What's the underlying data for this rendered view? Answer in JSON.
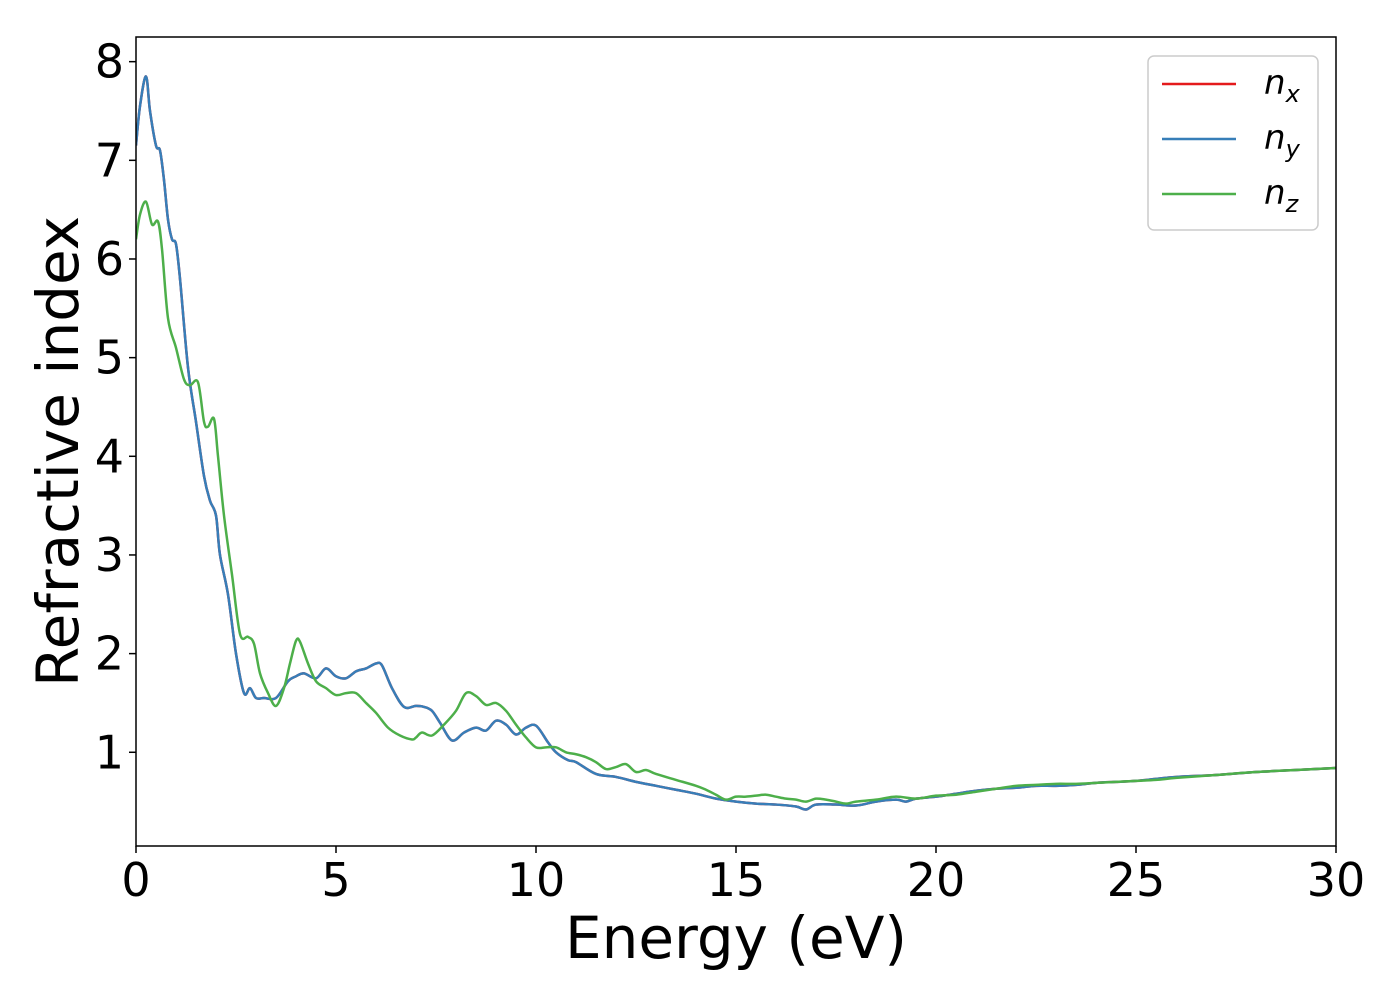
{
  "chart_data": {
    "type": "line",
    "title": "",
    "xlabel": "Energy (eV)",
    "ylabel": "Refractive index",
    "xlim": [
      0,
      30
    ],
    "ylim": [
      0.05,
      8.25
    ],
    "xticks": [
      0,
      5,
      10,
      15,
      20,
      25,
      30
    ],
    "yticks": [
      1,
      2,
      3,
      4,
      5,
      6,
      7,
      8
    ],
    "grid": false,
    "legend_position": "top-right",
    "series": [
      {
        "name": "n_x",
        "label_main": "n",
        "label_sub": "x",
        "color": "#e41a1c",
        "x": [
          0,
          0.1,
          0.25,
          0.35,
          0.5,
          0.6,
          0.7,
          0.8,
          0.9,
          1.0,
          1.1,
          1.3,
          1.5,
          1.7,
          1.85,
          2.0,
          2.1,
          2.3,
          2.5,
          2.7,
          2.85,
          3.0,
          3.2,
          3.5,
          3.8,
          4.0,
          4.2,
          4.5,
          4.75,
          5.0,
          5.25,
          5.5,
          5.75,
          6.0,
          6.15,
          6.4,
          6.7,
          7.0,
          7.2,
          7.4,
          7.6,
          7.9,
          8.2,
          8.5,
          8.75,
          9.0,
          9.25,
          9.5,
          9.75,
          10.0,
          10.3,
          10.5,
          10.8,
          11.0,
          11.5,
          12.0,
          12.5,
          13.0,
          13.5,
          14.0,
          14.5,
          15.0,
          15.5,
          16.0,
          16.5,
          16.75,
          17.0,
          17.5,
          18.0,
          18.5,
          19.0,
          19.25,
          19.5,
          20.0,
          20.5,
          21.0,
          21.5,
          22.0,
          22.5,
          23.0,
          23.5,
          24.0,
          24.5,
          25.0,
          25.5,
          26.0,
          27.0,
          28.0,
          29.0,
          30.0
        ],
        "y": [
          7.15,
          7.55,
          7.85,
          7.5,
          7.15,
          7.1,
          6.8,
          6.4,
          6.2,
          6.15,
          5.8,
          4.9,
          4.35,
          3.8,
          3.55,
          3.4,
          3.0,
          2.6,
          2.0,
          1.6,
          1.65,
          1.55,
          1.55,
          1.55,
          1.72,
          1.77,
          1.8,
          1.75,
          1.85,
          1.77,
          1.75,
          1.82,
          1.85,
          1.9,
          1.88,
          1.65,
          1.46,
          1.47,
          1.46,
          1.42,
          1.3,
          1.12,
          1.2,
          1.25,
          1.22,
          1.32,
          1.28,
          1.18,
          1.25,
          1.27,
          1.1,
          1.0,
          0.92,
          0.9,
          0.78,
          0.75,
          0.7,
          0.66,
          0.62,
          0.58,
          0.53,
          0.5,
          0.48,
          0.47,
          0.45,
          0.42,
          0.47,
          0.47,
          0.46,
          0.5,
          0.52,
          0.5,
          0.53,
          0.55,
          0.58,
          0.61,
          0.63,
          0.64,
          0.66,
          0.66,
          0.67,
          0.69,
          0.7,
          0.71,
          0.73,
          0.75,
          0.77,
          0.8,
          0.82,
          0.84
        ]
      },
      {
        "name": "n_y",
        "label_main": "n",
        "label_sub": "y",
        "color": "#377eb8",
        "x": [
          0,
          0.1,
          0.25,
          0.35,
          0.5,
          0.6,
          0.7,
          0.8,
          0.9,
          1.0,
          1.1,
          1.3,
          1.5,
          1.7,
          1.85,
          2.0,
          2.1,
          2.3,
          2.5,
          2.7,
          2.85,
          3.0,
          3.2,
          3.5,
          3.8,
          4.0,
          4.2,
          4.5,
          4.75,
          5.0,
          5.25,
          5.5,
          5.75,
          6.0,
          6.15,
          6.4,
          6.7,
          7.0,
          7.2,
          7.4,
          7.6,
          7.9,
          8.2,
          8.5,
          8.75,
          9.0,
          9.25,
          9.5,
          9.75,
          10.0,
          10.3,
          10.5,
          10.8,
          11.0,
          11.5,
          12.0,
          12.5,
          13.0,
          13.5,
          14.0,
          14.5,
          15.0,
          15.5,
          16.0,
          16.5,
          16.75,
          17.0,
          17.5,
          18.0,
          18.5,
          19.0,
          19.25,
          19.5,
          20.0,
          20.5,
          21.0,
          21.5,
          22.0,
          22.5,
          23.0,
          23.5,
          24.0,
          24.5,
          25.0,
          25.5,
          26.0,
          27.0,
          28.0,
          29.0,
          30.0
        ],
        "y": [
          7.15,
          7.55,
          7.85,
          7.5,
          7.15,
          7.1,
          6.8,
          6.4,
          6.2,
          6.15,
          5.8,
          4.9,
          4.35,
          3.8,
          3.55,
          3.4,
          3.0,
          2.6,
          2.0,
          1.6,
          1.65,
          1.55,
          1.55,
          1.55,
          1.72,
          1.77,
          1.8,
          1.75,
          1.85,
          1.77,
          1.75,
          1.82,
          1.85,
          1.9,
          1.88,
          1.65,
          1.46,
          1.47,
          1.46,
          1.42,
          1.3,
          1.12,
          1.2,
          1.25,
          1.22,
          1.32,
          1.28,
          1.18,
          1.25,
          1.27,
          1.1,
          1.0,
          0.92,
          0.9,
          0.78,
          0.75,
          0.7,
          0.66,
          0.62,
          0.58,
          0.53,
          0.5,
          0.48,
          0.47,
          0.45,
          0.42,
          0.47,
          0.47,
          0.46,
          0.5,
          0.52,
          0.5,
          0.53,
          0.55,
          0.58,
          0.61,
          0.63,
          0.64,
          0.66,
          0.66,
          0.67,
          0.69,
          0.7,
          0.71,
          0.73,
          0.75,
          0.77,
          0.8,
          0.82,
          0.84
        ]
      },
      {
        "name": "n_z",
        "label_main": "n",
        "label_sub": "z",
        "color": "#4daf4a",
        "x": [
          0,
          0.1,
          0.25,
          0.4,
          0.55,
          0.65,
          0.8,
          1.0,
          1.2,
          1.35,
          1.55,
          1.7,
          1.8,
          1.95,
          2.05,
          2.2,
          2.4,
          2.6,
          2.8,
          2.95,
          3.1,
          3.3,
          3.5,
          3.7,
          3.85,
          4.0,
          4.1,
          4.3,
          4.5,
          4.75,
          5.0,
          5.25,
          5.5,
          5.75,
          6.0,
          6.3,
          6.6,
          6.9,
          7.0,
          7.15,
          7.4,
          7.7,
          8.0,
          8.25,
          8.5,
          8.75,
          9.0,
          9.25,
          9.5,
          9.75,
          10.0,
          10.25,
          10.5,
          10.75,
          11.0,
          11.25,
          11.5,
          11.75,
          12.0,
          12.25,
          12.5,
          12.75,
          13.0,
          13.5,
          14.0,
          14.25,
          14.5,
          14.75,
          15.0,
          15.25,
          15.5,
          15.75,
          16.0,
          16.25,
          16.5,
          16.75,
          17.0,
          17.25,
          17.5,
          17.75,
          18.0,
          18.5,
          19.0,
          19.5,
          20.0,
          20.5,
          21.0,
          21.5,
          22.0,
          22.5,
          23.0,
          23.5,
          24.0,
          24.5,
          25.0,
          25.5,
          26.0,
          27.0,
          28.0,
          29.0,
          30.0
        ],
        "y": [
          6.2,
          6.45,
          6.58,
          6.35,
          6.38,
          6.1,
          5.4,
          5.1,
          4.78,
          4.72,
          4.75,
          4.35,
          4.3,
          4.38,
          4.0,
          3.4,
          2.8,
          2.2,
          2.17,
          2.1,
          1.8,
          1.6,
          1.47,
          1.65,
          1.9,
          2.13,
          2.12,
          1.9,
          1.72,
          1.65,
          1.58,
          1.6,
          1.6,
          1.5,
          1.4,
          1.25,
          1.17,
          1.13,
          1.15,
          1.2,
          1.17,
          1.28,
          1.42,
          1.6,
          1.57,
          1.48,
          1.5,
          1.42,
          1.28,
          1.15,
          1.05,
          1.05,
          1.05,
          1.0,
          0.98,
          0.95,
          0.9,
          0.83,
          0.85,
          0.88,
          0.8,
          0.82,
          0.78,
          0.72,
          0.66,
          0.62,
          0.57,
          0.52,
          0.55,
          0.55,
          0.56,
          0.57,
          0.55,
          0.53,
          0.52,
          0.5,
          0.53,
          0.52,
          0.5,
          0.48,
          0.5,
          0.52,
          0.55,
          0.53,
          0.56,
          0.57,
          0.6,
          0.63,
          0.66,
          0.67,
          0.68,
          0.68,
          0.69,
          0.7,
          0.71,
          0.72,
          0.74,
          0.77,
          0.8,
          0.82,
          0.84
        ]
      }
    ]
  }
}
